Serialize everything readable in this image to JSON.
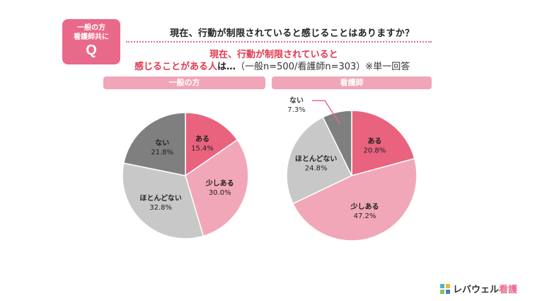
{
  "badge": {
    "line1": "一般の方",
    "line2": "看護師共に",
    "letter": "Q"
  },
  "question": "現在、行動が制限されていると感じることはありますか？",
  "answer": {
    "line1": "現在、行動が制限されていると",
    "line2_red": "感じることがある人",
    "line2_bold": "は…",
    "line2_note": "（一般n=500/看護師n=303）※単一回答"
  },
  "colors": {
    "accent": "#e9698a",
    "header_band": "#f0a5b8"
  },
  "logo": {
    "text_prefix": "レバウェル",
    "text_accent": "看護"
  },
  "chart_data": [
    {
      "type": "pie",
      "title": "一般の方",
      "start": "12 o'clock, clockwise",
      "slices": [
        {
          "label": "ある",
          "value": 15.4,
          "display": "15.4%",
          "color": "#e9637f"
        },
        {
          "label": "少しある",
          "value": 30.0,
          "display": "30.0%",
          "color": "#f2a7b9"
        },
        {
          "label": "ほとんどない",
          "value": 32.8,
          "display": "32.8%",
          "color": "#c8c8c8"
        },
        {
          "label": "ない",
          "value": 21.8,
          "display": "21.8%",
          "color": "#7f7f7f"
        }
      ]
    },
    {
      "type": "pie",
      "title": "看護師",
      "start": "12 o'clock, clockwise",
      "slices": [
        {
          "label": "ある",
          "value": 20.8,
          "display": "20.8%",
          "color": "#e9637f"
        },
        {
          "label": "少しある",
          "value": 47.2,
          "display": "47.2%",
          "color": "#f2a7b9"
        },
        {
          "label": "ほとんどない",
          "value": 24.8,
          "display": "24.8%",
          "color": "#c8c8c8"
        },
        {
          "label": "ない",
          "value": 7.3,
          "display": "7.3%",
          "color": "#7f7f7f"
        }
      ]
    }
  ]
}
